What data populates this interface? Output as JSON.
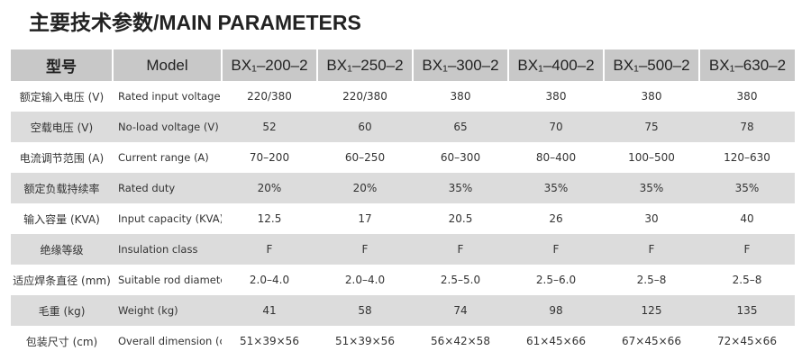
{
  "title": "主要技术参数/MAIN PARAMETERS",
  "table": {
    "header": [
      "型号",
      "Model",
      "BX₁–200–2",
      "BX₁–250–2",
      "BX₁–300–2",
      "BX₁–400–2",
      "BX₁–500–2",
      "BX₁–630–2"
    ],
    "rows": [
      [
        "额定输入电压 (V)",
        "Rated input voltage (V)",
        "220/380",
        "220/380",
        "380",
        "380",
        "380",
        "380"
      ],
      [
        "空载电压 (V)",
        "No-load voltage (V)",
        "52",
        "60",
        "65",
        "70",
        "75",
        "78"
      ],
      [
        "电流调节范围 (A)",
        "Current range (A)",
        "70–200",
        "60–250",
        "60–300",
        "80–400",
        "100–500",
        "120–630"
      ],
      [
        "额定负载持续率",
        "Rated duty",
        "20%",
        "20%",
        "35%",
        "35%",
        "35%",
        "35%"
      ],
      [
        "输入容量 (KVA)",
        "Input capacity (KVA)",
        "12.5",
        "17",
        "20.5",
        "26",
        "30",
        "40"
      ],
      [
        "绝缘等级",
        "Insulation class",
        "F",
        "F",
        "F",
        "F",
        "F",
        "F"
      ],
      [
        "适应焊条直径 (mm)",
        "Suitable rod diameter (mm)",
        "2.0–4.0",
        "2.0–4.0",
        "2.5–5.0",
        "2.5–6.0",
        "2.5–8",
        "2.5–8"
      ],
      [
        "毛重 (kg)",
        "Weight (kg)",
        "41",
        "58",
        "74",
        "98",
        "125",
        "135"
      ],
      [
        "包装尺寸 (cm)",
        "Overall dimension (cm)",
        "51×39×56",
        "51×39×56",
        "56×42×58",
        "61×45×66",
        "67×45×66",
        "72×45×66"
      ]
    ]
  }
}
